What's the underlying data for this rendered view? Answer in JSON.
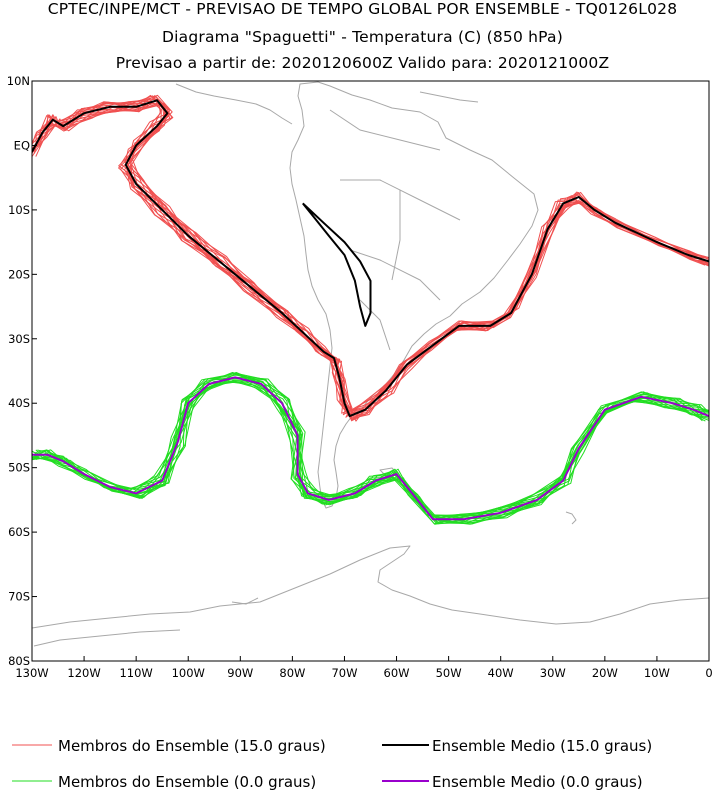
{
  "header": {
    "line1": "CPTEC/INPE/MCT - PREVISAO DE TEMPO GLOBAL POR ENSEMBLE - TQ0126L028",
    "line2": "Diagrama \"Spaguetti\" - Temperatura (C) (850 hPa)",
    "line3": "Previsao a partir de: 2020120600Z  Valido para: 2020121000Z"
  },
  "chart_data": {
    "type": "line",
    "projection": "map",
    "xlim": [
      -130,
      0
    ],
    "ylim": [
      -80,
      10
    ],
    "x_ticks": [
      {
        "value": -130,
        "label": "130W"
      },
      {
        "value": -120,
        "label": "120W"
      },
      {
        "value": -110,
        "label": "110W"
      },
      {
        "value": -100,
        "label": "100W"
      },
      {
        "value": -90,
        "label": "90W"
      },
      {
        "value": -80,
        "label": "80W"
      },
      {
        "value": -70,
        "label": "70W"
      },
      {
        "value": -60,
        "label": "60W"
      },
      {
        "value": -50,
        "label": "50W"
      },
      {
        "value": -40,
        "label": "40W"
      },
      {
        "value": -30,
        "label": "30W"
      },
      {
        "value": -20,
        "label": "20W"
      },
      {
        "value": -10,
        "label": "10W"
      },
      {
        "value": 0,
        "label": "0"
      }
    ],
    "y_ticks": [
      {
        "value": 10,
        "label": "10N"
      },
      {
        "value": 0,
        "label": "EQ"
      },
      {
        "value": -10,
        "label": "10S"
      },
      {
        "value": -20,
        "label": "20S"
      },
      {
        "value": -30,
        "label": "30S"
      },
      {
        "value": -40,
        "label": "40S"
      },
      {
        "value": -50,
        "label": "50S"
      },
      {
        "value": -60,
        "label": "60S"
      },
      {
        "value": -70,
        "label": "70S"
      },
      {
        "value": -80,
        "label": "80S"
      }
    ],
    "colors": {
      "members_15": "#f05050",
      "mean_15": "#000000",
      "members_0": "#22dd22",
      "mean_0": "#9900cc",
      "coast": "#a8a8a8"
    },
    "legend": [
      {
        "label": "Membros do Ensemble (15.0 graus)",
        "color": "#f05050"
      },
      {
        "label": "Ensemble Medio (15.0 graus)",
        "color": "#000000"
      },
      {
        "label": "Membros do Ensemble (0.0 graus)",
        "color": "#22dd22"
      },
      {
        "label": "Ensemble Medio (0.0 graus)",
        "color": "#9900cc"
      }
    ],
    "series": [
      {
        "name": "Ensemble Medio (15.0 graus)",
        "color": "#000000",
        "members": 0,
        "points": [
          [
            -130,
            -1
          ],
          [
            -128,
            2
          ],
          [
            -126,
            4
          ],
          [
            -124,
            3
          ],
          [
            -120,
            5
          ],
          [
            -115,
            6
          ],
          [
            -110,
            6
          ],
          [
            -106,
            7
          ],
          [
            -104,
            5
          ],
          [
            -106,
            3
          ],
          [
            -110,
            0
          ],
          [
            -112,
            -3
          ],
          [
            -110,
            -6
          ],
          [
            -105,
            -10
          ],
          [
            -100,
            -14
          ],
          [
            -94,
            -18
          ],
          [
            -88,
            -22
          ],
          [
            -82,
            -26
          ],
          [
            -78,
            -29
          ],
          [
            -74,
            -32
          ],
          [
            -72,
            -33
          ],
          [
            -71,
            -36
          ],
          [
            -70,
            -40
          ],
          [
            -69,
            -42
          ],
          [
            -66,
            -41
          ],
          [
            -62,
            -38
          ],
          [
            -58,
            -34
          ],
          [
            -53,
            -31
          ],
          [
            -48,
            -28
          ],
          [
            -42,
            -28
          ],
          [
            -38,
            -26
          ],
          [
            -34,
            -20
          ],
          [
            -31,
            -13
          ],
          [
            -28,
            -9
          ],
          [
            -25,
            -8
          ],
          [
            -22,
            -10
          ],
          [
            -18,
            -12
          ],
          [
            -10,
            -15
          ],
          [
            -4,
            -17
          ],
          [
            0,
            -18
          ]
        ]
      },
      {
        "name": "Ensemble Medio (15.0 graus) - loop",
        "color": "#000000",
        "members": 0,
        "points": [
          [
            -78,
            -9
          ],
          [
            -76,
            -11
          ],
          [
            -73,
            -14
          ],
          [
            -70,
            -17
          ],
          [
            -68,
            -21
          ],
          [
            -67,
            -25
          ],
          [
            -66,
            -28
          ],
          [
            -65,
            -26
          ],
          [
            -65,
            -21
          ],
          [
            -67,
            -18
          ],
          [
            -70,
            -15
          ],
          [
            -74,
            -12
          ],
          [
            -78,
            -9
          ]
        ]
      },
      {
        "name": "Ensemble Medio (0.0 graus)",
        "color": "#9900cc",
        "members": 0,
        "points": [
          [
            -130,
            -48
          ],
          [
            -127,
            -48
          ],
          [
            -124,
            -49
          ],
          [
            -120,
            -51
          ],
          [
            -115,
            -53
          ],
          [
            -110,
            -54
          ],
          [
            -105,
            -52
          ],
          [
            -102,
            -46
          ],
          [
            -100,
            -40
          ],
          [
            -96,
            -37
          ],
          [
            -91,
            -36
          ],
          [
            -86,
            -37
          ],
          [
            -82,
            -40
          ],
          [
            -79,
            -45
          ],
          [
            -79,
            -51
          ],
          [
            -77,
            -54
          ],
          [
            -73,
            -55
          ],
          [
            -68,
            -54
          ],
          [
            -64,
            -52
          ],
          [
            -60,
            -51
          ],
          [
            -57,
            -54
          ],
          [
            -53,
            -58
          ],
          [
            -47,
            -58
          ],
          [
            -40,
            -57
          ],
          [
            -33,
            -55
          ],
          [
            -28,
            -52
          ],
          [
            -25,
            -47
          ],
          [
            -20,
            -41
          ],
          [
            -13,
            -39
          ],
          [
            -7,
            -40
          ],
          [
            -3,
            -41
          ],
          [
            0,
            -42
          ]
        ]
      },
      {
        "name": "Membros do Ensemble (15.0 graus)",
        "color": "#f05050",
        "members": 16,
        "points": [
          [
            -130,
            -1
          ],
          [
            -128,
            2
          ],
          [
            -126,
            4
          ],
          [
            -124,
            3
          ],
          [
            -120,
            5
          ],
          [
            -115,
            6
          ],
          [
            -110,
            6
          ],
          [
            -106,
            7
          ],
          [
            -104,
            5
          ],
          [
            -106,
            3
          ],
          [
            -110,
            0
          ],
          [
            -112,
            -3
          ],
          [
            -110,
            -6
          ],
          [
            -105,
            -10
          ],
          [
            -100,
            -14
          ],
          [
            -94,
            -18
          ],
          [
            -88,
            -22
          ],
          [
            -82,
            -26
          ],
          [
            -78,
            -29
          ],
          [
            -74,
            -32
          ],
          [
            -72,
            -33
          ],
          [
            -71,
            -36
          ],
          [
            -70,
            -40
          ],
          [
            -69,
            -42
          ],
          [
            -66,
            -41
          ],
          [
            -62,
            -38
          ],
          [
            -58,
            -34
          ],
          [
            -53,
            -31
          ],
          [
            -48,
            -28
          ],
          [
            -42,
            -28
          ],
          [
            -38,
            -26
          ],
          [
            -34,
            -20
          ],
          [
            -31,
            -13
          ],
          [
            -28,
            -9
          ],
          [
            -25,
            -8
          ],
          [
            -22,
            -10
          ],
          [
            -18,
            -12
          ],
          [
            -10,
            -15
          ],
          [
            -4,
            -17
          ],
          [
            0,
            -18
          ]
        ]
      },
      {
        "name": "Membros do Ensemble (0.0 graus)",
        "color": "#22dd22",
        "members": 16,
        "points": [
          [
            -130,
            -48
          ],
          [
            -127,
            -48
          ],
          [
            -124,
            -49
          ],
          [
            -120,
            -51
          ],
          [
            -115,
            -53
          ],
          [
            -110,
            -54
          ],
          [
            -105,
            -52
          ],
          [
            -102,
            -46
          ],
          [
            -100,
            -40
          ],
          [
            -96,
            -37
          ],
          [
            -91,
            -36
          ],
          [
            -86,
            -37
          ],
          [
            -82,
            -40
          ],
          [
            -79,
            -45
          ],
          [
            -79,
            -51
          ],
          [
            -77,
            -54
          ],
          [
            -73,
            -55
          ],
          [
            -68,
            -54
          ],
          [
            -64,
            -52
          ],
          [
            -60,
            -51
          ],
          [
            -57,
            -54
          ],
          [
            -53,
            -58
          ],
          [
            -47,
            -58
          ],
          [
            -40,
            -57
          ],
          [
            -33,
            -55
          ],
          [
            -28,
            -52
          ],
          [
            -25,
            -47
          ],
          [
            -20,
            -41
          ],
          [
            -13,
            -39
          ],
          [
            -7,
            -40
          ],
          [
            -3,
            -41
          ],
          [
            0,
            -42
          ]
        ]
      }
    ]
  }
}
